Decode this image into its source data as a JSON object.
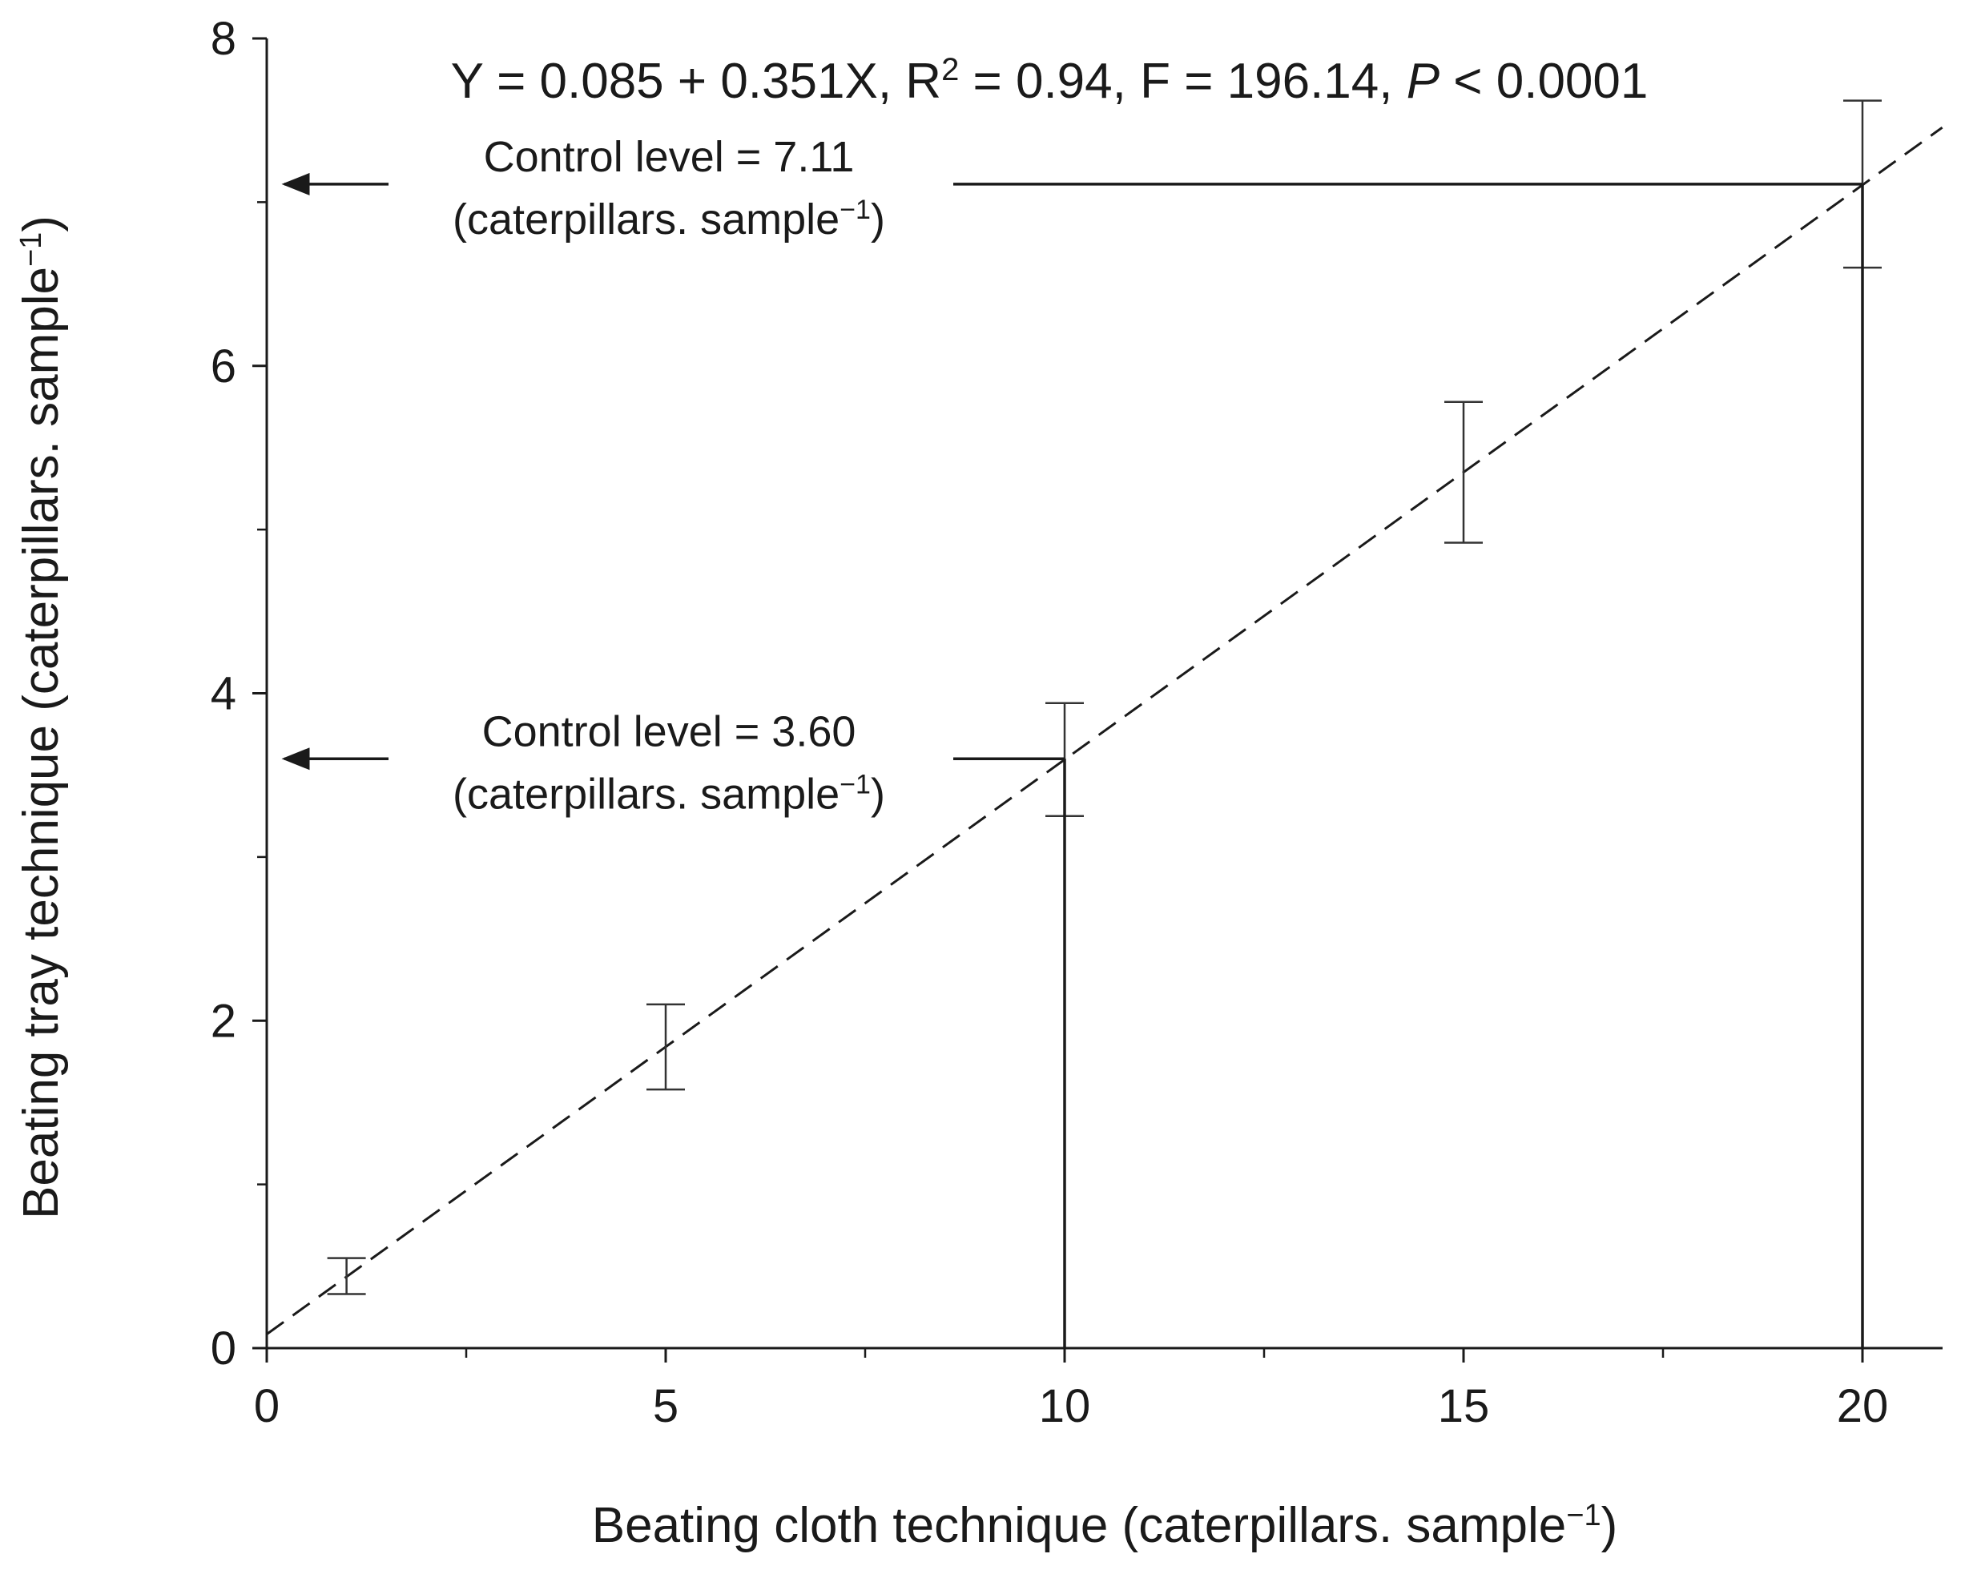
{
  "chart_data": {
    "type": "scatter",
    "title": "",
    "xlabel": "Beating cloth technique (caterpillars. sample",
    "ylabel": "Beating tray technique (caterpillars. sample",
    "label_superscript": "−1",
    "label_close": ")",
    "xlim": [
      0,
      21
    ],
    "ylim": [
      0,
      8
    ],
    "x_major_ticks": [
      0,
      5,
      10,
      15,
      20
    ],
    "x_tick_labels": [
      "0",
      "5",
      "10",
      "15",
      "20"
    ],
    "x_minor_ticks": [
      2.5,
      7.5,
      12.5,
      17.5
    ],
    "y_major_ticks": [
      0,
      2,
      4,
      6,
      8
    ],
    "y_tick_labels": [
      "0",
      "2",
      "4",
      "6",
      "8"
    ],
    "y_minor_ticks": [
      1,
      3,
      5,
      7
    ],
    "grid": false,
    "series": [
      {
        "points": [
          {
            "x": 1,
            "y": 0.44,
            "y_low": 0.33,
            "y_high": 0.55
          },
          {
            "x": 5,
            "y": 1.84,
            "y_low": 1.58,
            "y_high": 2.1
          },
          {
            "x": 10,
            "y": 3.6,
            "y_low": 3.25,
            "y_high": 3.94
          },
          {
            "x": 15,
            "y": 5.35,
            "y_low": 4.92,
            "y_high": 5.78
          },
          {
            "x": 20,
            "y": 7.11,
            "y_low": 6.6,
            "y_high": 7.62
          }
        ]
      }
    ],
    "regression": {
      "intercept": 0.085,
      "slope": 0.351,
      "x_range": [
        0,
        21
      ],
      "style": "dashed",
      "equation_parts": {
        "main": "Y = 0.085 + 0.351X, R",
        "sup": "2",
        "mid": " = 0.94, F = 196.14, ",
        "italic": "P",
        "tail": " < 0.0001"
      }
    },
    "control_levels": [
      {
        "x": 10,
        "y": 3.6,
        "line1": "Control level = 3.60",
        "line2": "(caterpillars. sample",
        "sup": "−1",
        "close": ")"
      },
      {
        "x": 20,
        "y": 7.11,
        "line1": "Control level = 7.11",
        "line2": "(caterpillars. sample",
        "sup": "−1",
        "close": ")"
      }
    ],
    "colors": {
      "axis": "#1a1a1a",
      "mark": "#333333",
      "line": "#1a1a1a"
    }
  }
}
